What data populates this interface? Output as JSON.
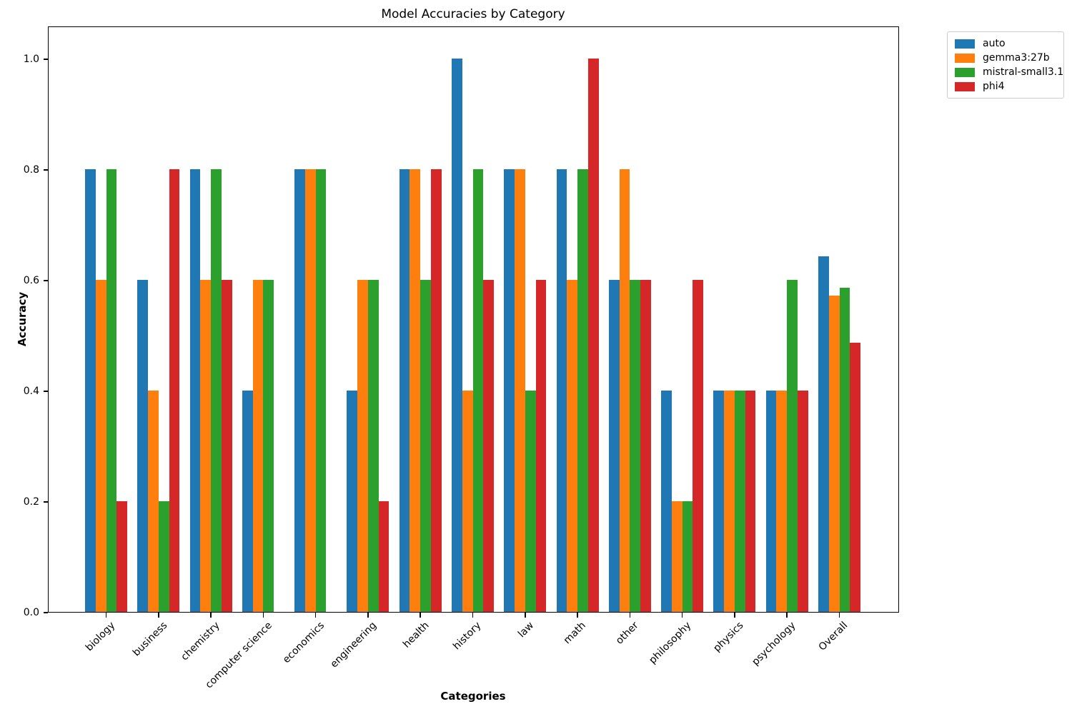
{
  "chart_data": {
    "type": "bar",
    "title": "Model Accuracies by Category",
    "xlabel": "Categories",
    "ylabel": "Accuracy",
    "categories": [
      "biology",
      "business",
      "chemistry",
      "computer science",
      "economics",
      "engineering",
      "health",
      "history",
      "law",
      "math",
      "other",
      "philosophy",
      "physics",
      "psychology",
      "Overall"
    ],
    "series": [
      {
        "name": "auto",
        "color": "#1f77b4",
        "values": [
          0.8,
          0.6,
          0.8,
          0.4,
          0.8,
          0.4,
          0.8,
          1.0,
          0.8,
          0.8,
          0.6,
          0.4,
          0.4,
          0.4,
          0.643
        ]
      },
      {
        "name": "gemma3:27b",
        "color": "#ff7f0e",
        "values": [
          0.6,
          0.4,
          0.6,
          0.6,
          0.8,
          0.6,
          0.8,
          0.4,
          0.8,
          0.6,
          0.8,
          0.2,
          0.4,
          0.4,
          0.571
        ]
      },
      {
        "name": "mistral-small3.1",
        "color": "#2ca02c",
        "values": [
          0.8,
          0.2,
          0.8,
          0.6,
          0.8,
          0.6,
          0.6,
          0.8,
          0.4,
          0.8,
          0.6,
          0.2,
          0.4,
          0.6,
          0.586
        ]
      },
      {
        "name": "phi4",
        "color": "#d62728",
        "values": [
          0.2,
          0.8,
          0.6,
          0.0,
          0.0,
          0.2,
          0.8,
          0.6,
          0.6,
          1.0,
          0.6,
          0.6,
          0.4,
          0.4,
          0.486
        ]
      }
    ],
    "yticks": [
      0.0,
      0.2,
      0.4,
      0.6,
      0.8,
      1.0
    ],
    "ytick_labels": [
      "0.0",
      "0.2",
      "0.4",
      "0.6",
      "0.8",
      "1.0"
    ],
    "ylim": [
      0,
      1.06
    ],
    "xtick_rotation_deg": 45,
    "grid": false,
    "legend_position": "upper-right-outside"
  }
}
